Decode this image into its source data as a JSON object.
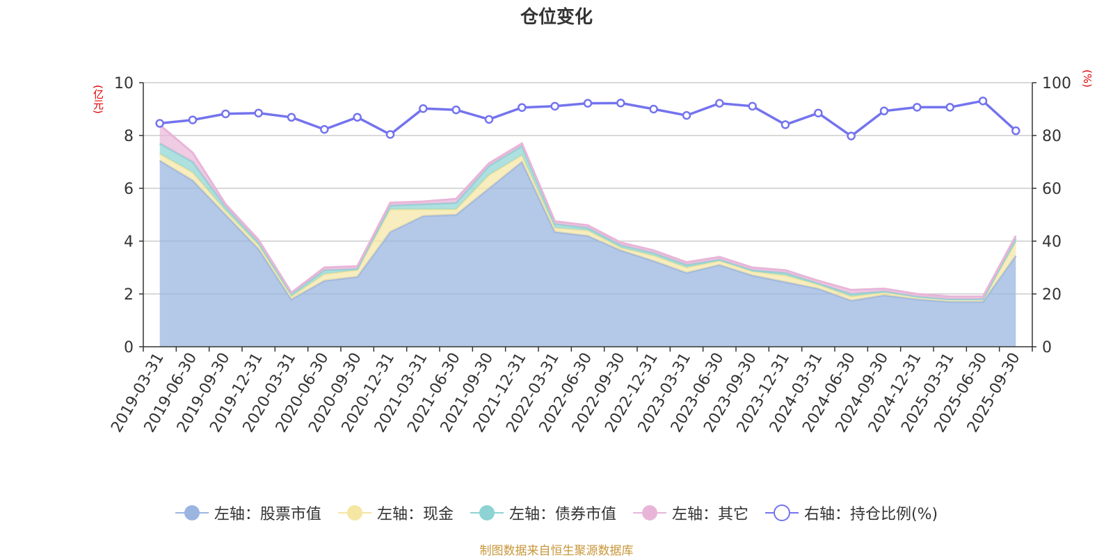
{
  "chart_data": {
    "type": "area",
    "title": "仓位变化",
    "left_axis_unit": "(亿元)",
    "right_axis_unit": "(%)",
    "left_ylim": [
      0,
      10
    ],
    "left_ticks": [
      0,
      2,
      4,
      6,
      8,
      10
    ],
    "right_ylim": [
      0,
      100
    ],
    "right_ticks": [
      0,
      20,
      40,
      60,
      80,
      100
    ],
    "categories": [
      "2019-03-31",
      "2019-06-30",
      "2019-09-30",
      "2019-12-31",
      "2020-03-31",
      "2020-06-30",
      "2020-09-30",
      "2020-12-31",
      "2021-03-31",
      "2021-06-30",
      "2021-09-30",
      "2021-12-31",
      "2022-03-31",
      "2022-06-30",
      "2022-09-30",
      "2022-12-31",
      "2023-03-31",
      "2023-06-30",
      "2023-09-30",
      "2023-12-31",
      "2024-03-31",
      "2024-06-30",
      "2024-09-30",
      "2024-12-31",
      "2025-03-31",
      "2025-06-30",
      "2025-09-30"
    ],
    "series": [
      {
        "name": "左轴：股票市值",
        "axis": "left",
        "color": "#9bb5e0",
        "values": [
          7.05,
          6.3,
          5.0,
          3.7,
          1.8,
          2.5,
          2.65,
          4.35,
          4.95,
          5.0,
          6.0,
          7.0,
          4.35,
          4.2,
          3.65,
          3.25,
          2.8,
          3.1,
          2.7,
          2.45,
          2.2,
          1.75,
          1.95,
          1.8,
          1.7,
          1.7,
          3.45
        ]
      },
      {
        "name": "左轴：现金",
        "axis": "left",
        "color": "#f5e6a3",
        "values": [
          0.25,
          0.3,
          0.15,
          0.15,
          0.1,
          0.25,
          0.25,
          0.85,
          0.25,
          0.2,
          0.5,
          0.25,
          0.15,
          0.2,
          0.1,
          0.2,
          0.2,
          0.15,
          0.15,
          0.25,
          0.15,
          0.15,
          0.1,
          0.1,
          0.1,
          0.1,
          0.5
        ]
      },
      {
        "name": "左轴：债券市值",
        "axis": "left",
        "color": "#8dd3d3",
        "values": [
          0.4,
          0.4,
          0.15,
          0.1,
          0.1,
          0.15,
          0.05,
          0.15,
          0.2,
          0.25,
          0.35,
          0.35,
          0.15,
          0.1,
          0.1,
          0.1,
          0.1,
          0.05,
          0.05,
          0.1,
          0.05,
          0.1,
          0.05,
          0.0,
          0.0,
          0.0,
          0.15
        ]
      },
      {
        "name": "左轴：其它",
        "axis": "left",
        "color": "#e8b5d8",
        "values": [
          0.7,
          0.35,
          0.1,
          0.1,
          0.05,
          0.1,
          0.1,
          0.1,
          0.1,
          0.15,
          0.1,
          0.1,
          0.1,
          0.1,
          0.1,
          0.1,
          0.1,
          0.1,
          0.1,
          0.1,
          0.1,
          0.15,
          0.1,
          0.1,
          0.1,
          0.1,
          0.1
        ]
      },
      {
        "name": "右轴：持仓比例(%)",
        "axis": "right",
        "color": "#7373ee",
        "values": [
          84.6,
          85.9,
          88.2,
          88.5,
          86.9,
          82.3,
          86.9,
          80.4,
          90.2,
          89.7,
          86.1,
          90.6,
          91.1,
          92.2,
          92.3,
          90.0,
          87.6,
          92.2,
          91.1,
          84.1,
          88.5,
          79.8,
          89.3,
          90.7,
          90.7,
          93.1,
          81.8
        ]
      }
    ]
  },
  "legend": [
    {
      "label": "左轴：股票市值",
      "type": "area",
      "color": "#9bb5e0"
    },
    {
      "label": "左轴：现金",
      "type": "area",
      "color": "#f5e6a3"
    },
    {
      "label": "左轴：债券市值",
      "type": "area",
      "color": "#8dd3d3"
    },
    {
      "label": "左轴：其它",
      "type": "area",
      "color": "#e8b5d8"
    },
    {
      "label": "右轴：持仓比例(%)",
      "type": "line",
      "color": "#7373ee"
    }
  ],
  "source": "制图数据来自恒生聚源数据库"
}
